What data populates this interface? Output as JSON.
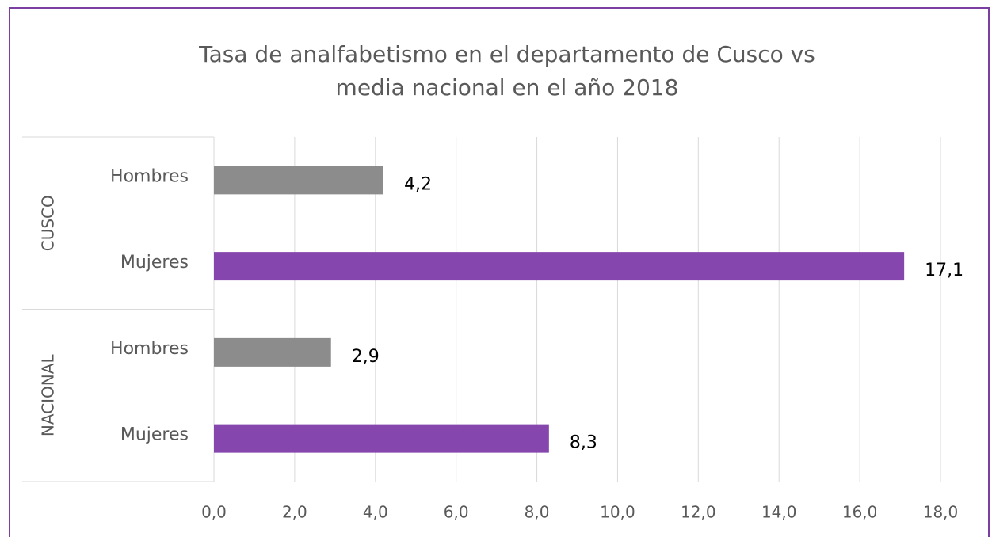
{
  "chart_data": {
    "type": "hbar",
    "title": "Tasa de analfabetismo en el departamento de Cusco vs media nacional en el año 2018",
    "groups": [
      {
        "name": "CUSCO",
        "categories": [
          "Hombres",
          "Mujeres"
        ],
        "values": [
          4.2,
          17.1
        ],
        "value_labels": [
          "4,2",
          "17,1"
        ],
        "colors": [
          "#8c8c8c",
          "#8547ad"
        ]
      },
      {
        "name": "NACIONAL",
        "categories": [
          "Hombres",
          "Mujeres"
        ],
        "values": [
          2.9,
          8.3
        ],
        "value_labels": [
          "2,9",
          "8,3"
        ],
        "colors": [
          "#8c8c8c",
          "#8547ad"
        ]
      }
    ],
    "xlim": [
      0,
      18
    ],
    "xticks": [
      {
        "value": 0,
        "label": "0,0"
      },
      {
        "value": 2,
        "label": "2,0"
      },
      {
        "value": 4,
        "label": "4,0"
      },
      {
        "value": 6,
        "label": "6,0"
      },
      {
        "value": 8,
        "label": "8,0"
      },
      {
        "value": 10,
        "label": "10,0"
      },
      {
        "value": 12,
        "label": "12,0"
      },
      {
        "value": 14,
        "label": "14,0"
      },
      {
        "value": 16,
        "label": "16,0"
      },
      {
        "value": 18,
        "label": "18,0"
      }
    ],
    "grid": true
  }
}
